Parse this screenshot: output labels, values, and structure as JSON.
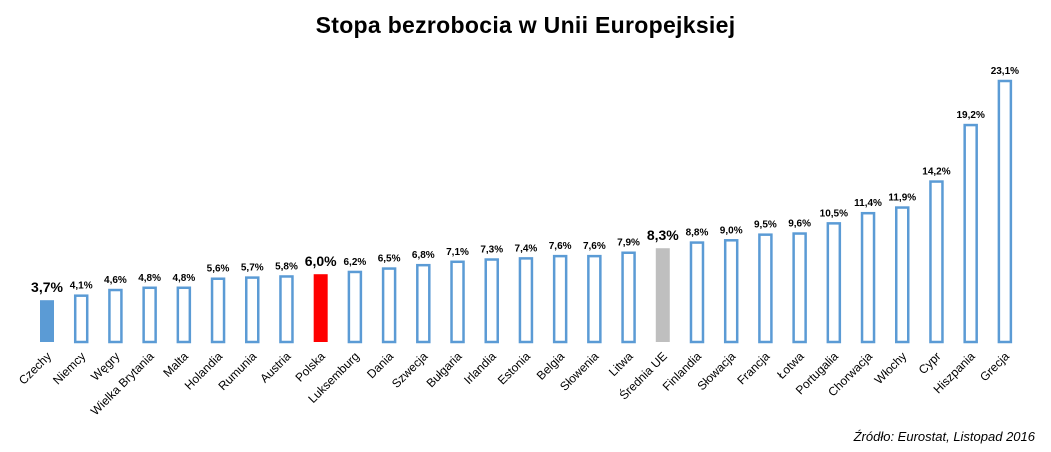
{
  "chart_data": {
    "type": "bar",
    "title": "Stopa bezrobocia w Unii Europejksiej",
    "categories": [
      "Czechy",
      "Niemcy",
      "Węgry",
      "Wielka Brytania",
      "Malta",
      "Holandia",
      "Rumunia",
      "Austria",
      "Polska",
      "Luksemburg",
      "Dania",
      "Szwecja",
      "Bułgaria",
      "Irlandia",
      "Estonia",
      "Belgia",
      "Słowenia",
      "Litwa",
      "Średnia UE",
      "Finlandia",
      "Słowacja",
      "Francja",
      "Łotwa",
      "Portugalia",
      "Chorwacja",
      "Włochy",
      "Cypr",
      "Hiszpania",
      "Grecja"
    ],
    "values": [
      3.7,
      4.1,
      4.6,
      4.8,
      4.8,
      5.6,
      5.7,
      5.8,
      6.0,
      6.2,
      6.5,
      6.8,
      7.1,
      7.3,
      7.4,
      7.6,
      7.6,
      7.9,
      8.3,
      8.8,
      9.0,
      9.5,
      9.6,
      10.5,
      11.4,
      11.9,
      14.2,
      19.2,
      23.1
    ],
    "value_labels": [
      "3,7%",
      "4,1%",
      "4,6%",
      "4,8%",
      "4,8%",
      "5,6%",
      "5,7%",
      "5,8%",
      "6,0%",
      "6,2%",
      "6,5%",
      "6,8%",
      "7,1%",
      "7,3%",
      "7,4%",
      "7,6%",
      "7,6%",
      "7,9%",
      "8,3%",
      "8,8%",
      "9,0%",
      "9,5%",
      "9,6%",
      "10,5%",
      "11,4%",
      "11,9%",
      "14,2%",
      "19,2%",
      "23,1%"
    ],
    "ylim": [
      0,
      23.1
    ],
    "grid": false,
    "highlights": {
      "Czechy": {
        "fill": "#5b9bd5",
        "label_color": "#5b9bd5"
      },
      "Polska": {
        "fill": "#ff0000",
        "label_color": "#ff0000"
      },
      "Średnia UE": {
        "fill": "#bfbfbf",
        "label_color": "#a6a6a6"
      }
    },
    "default_style": {
      "fill": "#ffffff",
      "stroke": "#5b9bd5"
    }
  },
  "source": "Źródło: Eurostat, Listopad 2016"
}
